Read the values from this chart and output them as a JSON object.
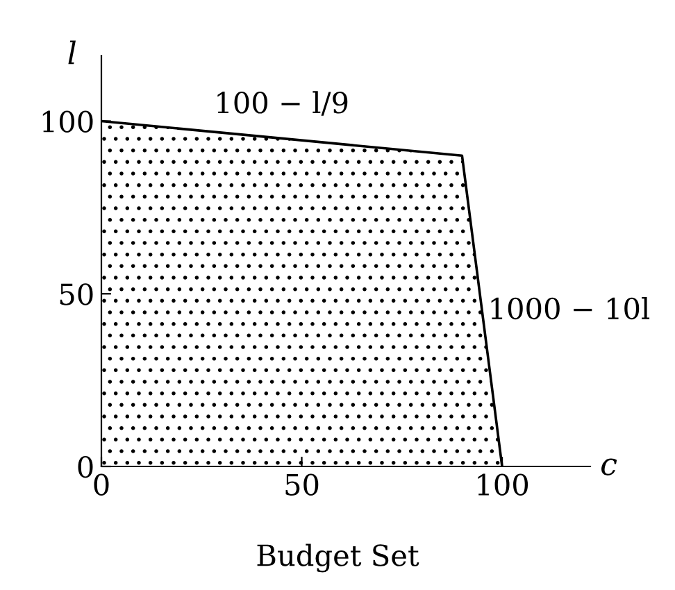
{
  "chart_data": {
    "type": "area",
    "title": "Budget Set",
    "xlabel": "c",
    "ylabel": "l",
    "x": [
      0,
      90,
      100
    ],
    "series": [
      {
        "color": "#000000",
        "values": [
          100,
          90,
          0
        ]
      }
    ],
    "xlim": [
      0,
      122
    ],
    "ylim": [
      0,
      119
    ],
    "xticks": [
      0,
      50,
      100
    ],
    "yticks": [
      0,
      50,
      100
    ],
    "grid": false,
    "legend": false,
    "annotations": [
      {
        "text": "100 − l/9",
        "x": 45,
        "y": 95
      },
      {
        "text": "1000 − 10l",
        "x": 95,
        "y": 45
      }
    ]
  }
}
